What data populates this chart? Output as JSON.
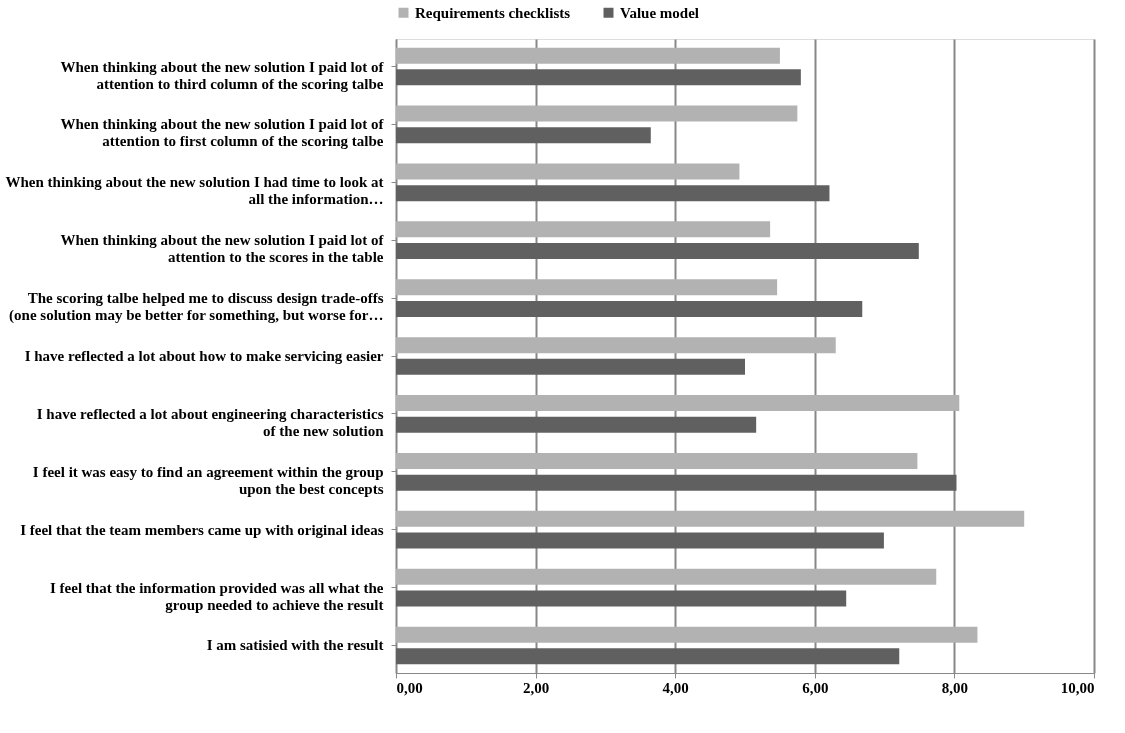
{
  "chart_data": {
    "type": "bar",
    "orientation": "horizontal",
    "categories": [
      "When thinking about the new solution I paid lot of attention to third column of the scoring talbe",
      "When thinking about the new solution I paid lot of attention to first column of the scoring talbe",
      "When thinking about the new solution I had time to look at all the information…",
      "When thinking about the new solution I paid lot of attention to the scores in the table",
      "The scoring talbe helped me to discuss design trade-offs (one solution may be better for something, but worse for…",
      "I have reflected a lot about how to make servicing easier",
      "I have reflected a lot about engineering characteristics of the new solution",
      "I feel it was easy to find an agreement within the group upon the best concepts",
      "I feel that the team members came up with original ideas",
      "I feel that the information provided was all what the group needed to achieve the result",
      "I am satisied with the result"
    ],
    "series": [
      {
        "name": "Requirements checklists",
        "color": "#b2b2b2",
        "values": [
          5.5,
          5.75,
          4.92,
          5.36,
          5.46,
          6.3,
          8.07,
          7.47,
          9.0,
          7.74,
          8.33
        ]
      },
      {
        "name": "Value model",
        "color": "#606060",
        "values": [
          5.8,
          3.65,
          6.21,
          7.49,
          6.68,
          5.0,
          5.16,
          8.03,
          6.99,
          6.45,
          7.21
        ]
      }
    ],
    "xlim": [
      0,
      10
    ],
    "xticks": [
      {
        "value": 0,
        "label": "0,00"
      },
      {
        "value": 2,
        "label": "2,00"
      },
      {
        "value": 4,
        "label": "4,00"
      },
      {
        "value": 6,
        "label": "6,00"
      },
      {
        "value": 8,
        "label": "8,00"
      },
      {
        "value": 10,
        "label": "10,00"
      }
    ],
    "grid": "x",
    "legend": "top"
  }
}
